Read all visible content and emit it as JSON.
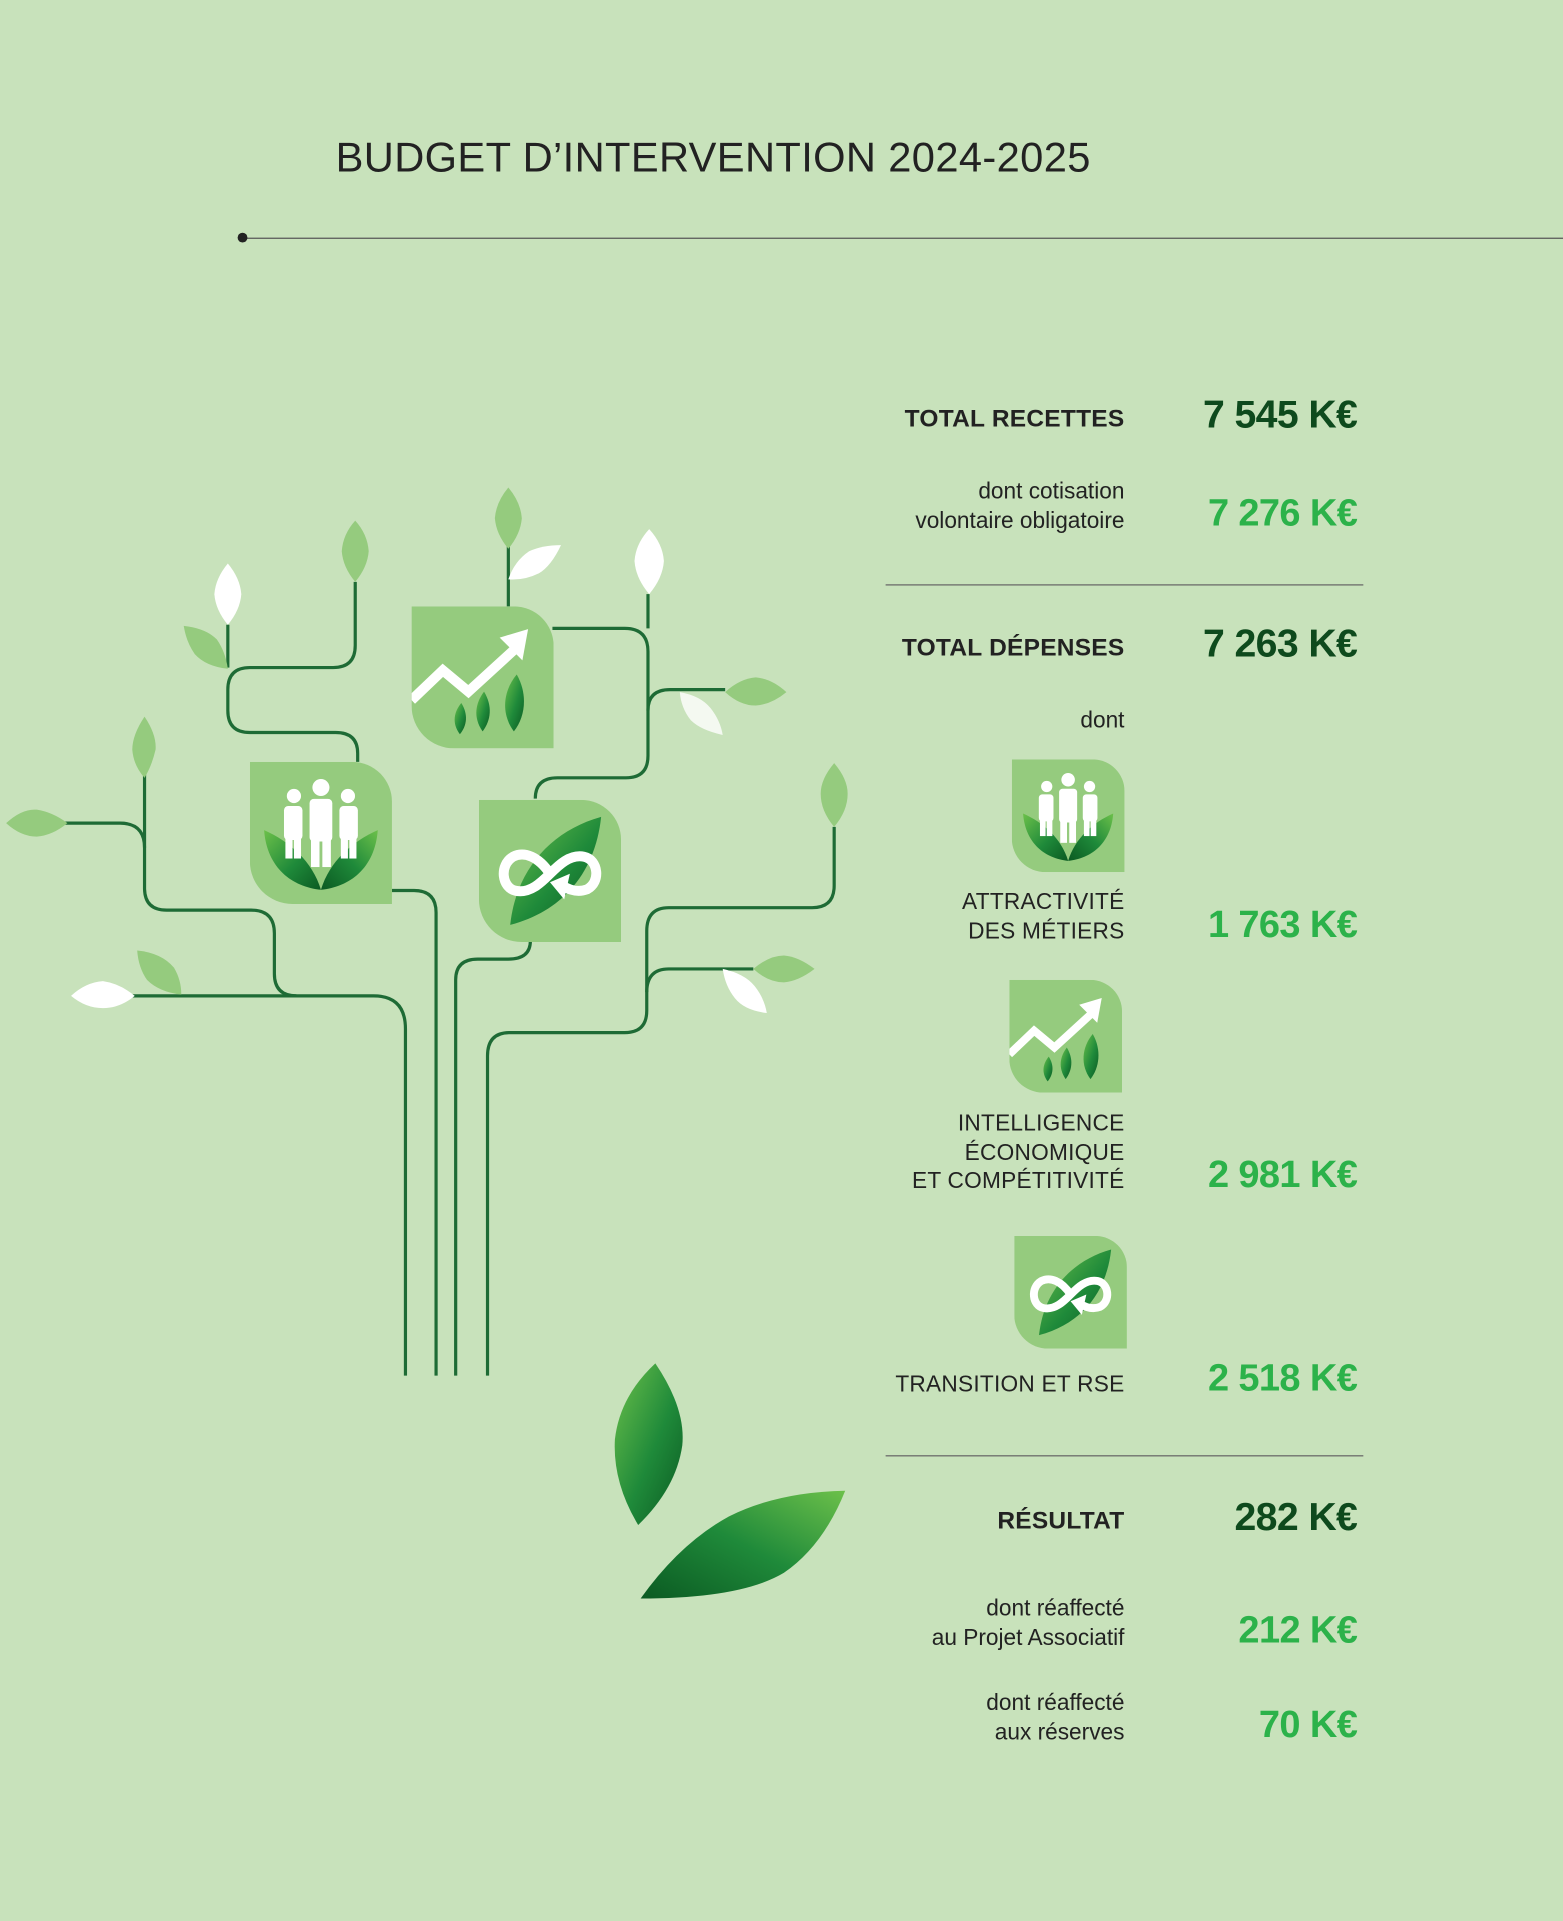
{
  "title": "BUDGET D’INTERVENTION 2024-2025",
  "colors": {
    "background": "#c8e2bb",
    "dark_value": "#0e4a1d",
    "green_value": "#2cb24a",
    "icon_tile": "#95cb7e",
    "branch": "#1e6b35"
  },
  "recettes": {
    "label": "TOTAL RECETTES",
    "value": "7 545 K€",
    "sub_line1": "dont cotisation",
    "sub_line2": "volontaire obligatoire",
    "sub_value": "7 276 K€"
  },
  "depenses": {
    "label": "TOTAL DÉPENSES",
    "value": "7 263 K€",
    "dont": "dont",
    "items": [
      {
        "icon": "people-leaves-icon",
        "line1": "ATTRACTIVITÉ",
        "line2": "DES MÉTIERS",
        "value": "1 763 K€"
      },
      {
        "icon": "growth-chart-icon",
        "line1": "INTELLIGENCE",
        "line2": "ÉCONOMIQUE",
        "line3": "ET COMPÉTITIVITÉ",
        "value": "2 981 K€"
      },
      {
        "icon": "infinity-leaf-icon",
        "line1": "TRANSITION ET RSE",
        "value": "2 518 K€"
      }
    ]
  },
  "resultat": {
    "label": "RÉSULTAT",
    "value": "282 K€",
    "sub1_line1": "dont réaffecté",
    "sub1_line2": "au Projet Associatif",
    "sub1_value": "212 K€",
    "sub2_line1": "dont réaffecté",
    "sub2_line2": "aux réserves",
    "sub2_value": "70 K€"
  }
}
